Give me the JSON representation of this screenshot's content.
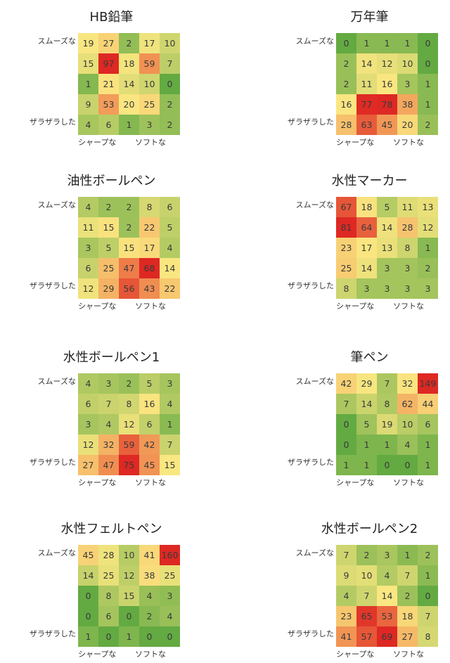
{
  "labels": {
    "smooth": "スムーズな",
    "rough": "ザラザラした",
    "sharp": "シャープな",
    "soft": "ソフトな"
  },
  "chart_data": [
    {
      "type": "heatmap",
      "title": "HB鉛筆",
      "rows": [
        [
          19,
          27,
          2,
          17,
          10
        ],
        [
          15,
          97,
          18,
          59,
          7
        ],
        [
          1,
          21,
          14,
          10,
          0
        ],
        [
          9,
          53,
          20,
          25,
          2
        ],
        [
          4,
          6,
          1,
          3,
          2
        ]
      ]
    },
    {
      "type": "heatmap",
      "title": "万年筆",
      "rows": [
        [
          0,
          1,
          1,
          1,
          0
        ],
        [
          2,
          14,
          12,
          10,
          0
        ],
        [
          2,
          11,
          16,
          3,
          1
        ],
        [
          16,
          77,
          78,
          38,
          1
        ],
        [
          28,
          63,
          45,
          20,
          2
        ]
      ]
    },
    {
      "type": "heatmap",
      "title": "油性ボールペン",
      "rows": [
        [
          4,
          2,
          2,
          8,
          6
        ],
        [
          11,
          15,
          2,
          22,
          5
        ],
        [
          3,
          5,
          15,
          17,
          4
        ],
        [
          6,
          25,
          47,
          68,
          14
        ],
        [
          12,
          29,
          56,
          43,
          22
        ]
      ]
    },
    {
      "type": "heatmap",
      "title": "水性マーカー",
      "rows": [
        [
          67,
          18,
          5,
          11,
          13
        ],
        [
          81,
          64,
          14,
          28,
          12
        ],
        [
          23,
          17,
          13,
          8,
          1
        ],
        [
          25,
          14,
          3,
          3,
          2
        ],
        [
          8,
          3,
          3,
          3,
          3
        ]
      ]
    },
    {
      "type": "heatmap",
      "title": "水性ボールペン1",
      "rows": [
        [
          4,
          3,
          2,
          5,
          3
        ],
        [
          6,
          7,
          8,
          16,
          4
        ],
        [
          3,
          4,
          12,
          6,
          1
        ],
        [
          12,
          32,
          59,
          42,
          7
        ],
        [
          27,
          47,
          75,
          45,
          15
        ]
      ]
    },
    {
      "type": "heatmap",
      "title": "筆ペン",
      "rows": [
        [
          42,
          29,
          7,
          32,
          149
        ],
        [
          7,
          14,
          8,
          62,
          44
        ],
        [
          0,
          5,
          19,
          10,
          6
        ],
        [
          0,
          1,
          1,
          4,
          1
        ],
        [
          1,
          1,
          0,
          0,
          1
        ]
      ]
    },
    {
      "type": "heatmap",
      "title": "水性フェルトペン",
      "rows": [
        [
          45,
          28,
          10,
          41,
          160
        ],
        [
          14,
          25,
          12,
          38,
          25
        ],
        [
          0,
          8,
          15,
          4,
          3
        ],
        [
          0,
          6,
          0,
          2,
          4
        ],
        [
          1,
          0,
          1,
          0,
          0
        ]
      ]
    },
    {
      "type": "heatmap",
      "title": "水性ボールペン2",
      "rows": [
        [
          7,
          2,
          3,
          1,
          2
        ],
        [
          9,
          10,
          4,
          7,
          1
        ],
        [
          4,
          7,
          14,
          2,
          0
        ],
        [
          23,
          65,
          53,
          18,
          7
        ],
        [
          41,
          57,
          69,
          27,
          8
        ]
      ]
    }
  ]
}
